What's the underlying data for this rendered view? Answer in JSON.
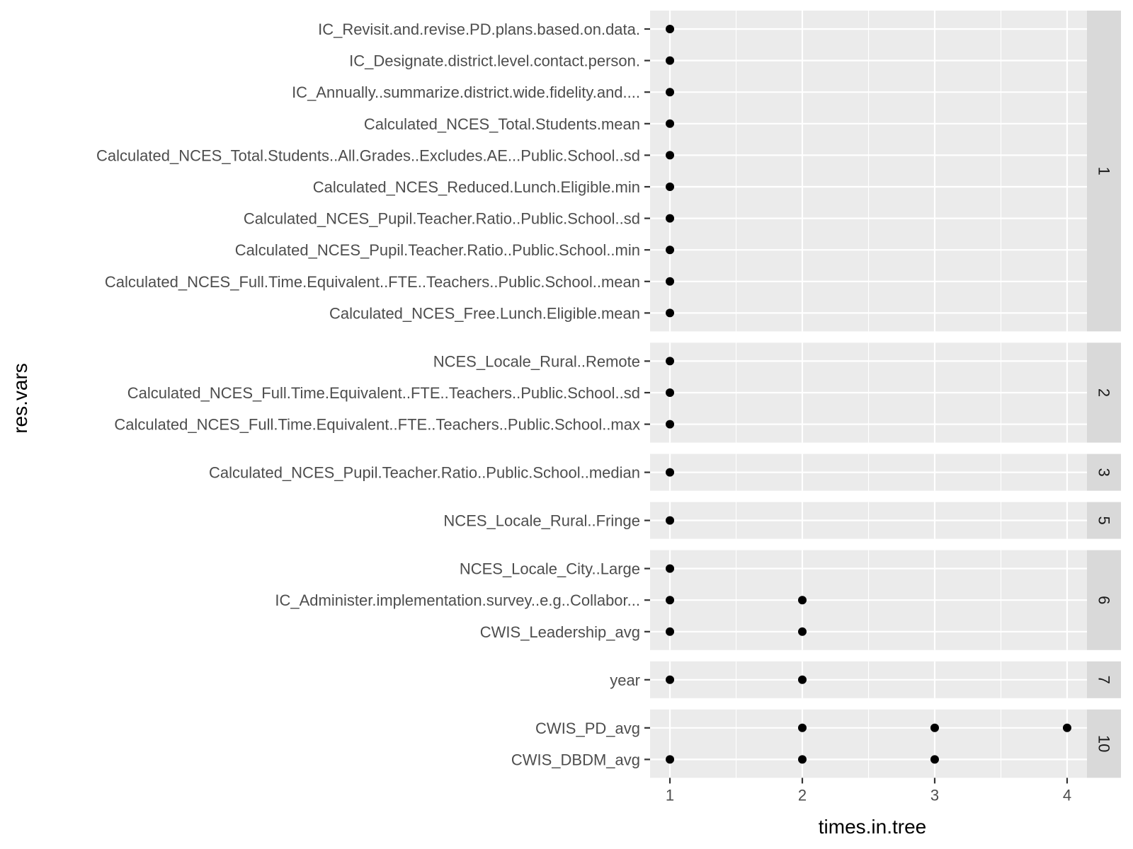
{
  "chart_data": {
    "type": "scatter",
    "xlabel": "times.in.tree",
    "ylabel": "res.vars",
    "xlim": [
      0.85,
      4.15
    ],
    "x_ticks": [
      1,
      2,
      3,
      4
    ],
    "grid": true,
    "facet_by": "times.in.tree (max)",
    "panels": [
      {
        "strip": "1",
        "rows": [
          {
            "label": "IC_Revisit.and.revise.PD.plans.based.on.data.",
            "x": [
              1
            ]
          },
          {
            "label": "IC_Designate.district.level.contact.person.",
            "x": [
              1
            ]
          },
          {
            "label": "IC_Annually..summarize.district.wide.fidelity.and....",
            "x": [
              1
            ]
          },
          {
            "label": "Calculated_NCES_Total.Students.mean",
            "x": [
              1
            ]
          },
          {
            "label": "Calculated_NCES_Total.Students..All.Grades..Excludes.AE...Public.School..sd",
            "x": [
              1
            ]
          },
          {
            "label": "Calculated_NCES_Reduced.Lunch.Eligible.min",
            "x": [
              1
            ]
          },
          {
            "label": "Calculated_NCES_Pupil.Teacher.Ratio..Public.School..sd",
            "x": [
              1
            ]
          },
          {
            "label": "Calculated_NCES_Pupil.Teacher.Ratio..Public.School..min",
            "x": [
              1
            ]
          },
          {
            "label": "Calculated_NCES_Full.Time.Equivalent..FTE..Teachers..Public.School..mean",
            "x": [
              1
            ]
          },
          {
            "label": "Calculated_NCES_Free.Lunch.Eligible.mean",
            "x": [
              1
            ]
          }
        ]
      },
      {
        "strip": "2",
        "rows": [
          {
            "label": "NCES_Locale_Rural..Remote",
            "x": [
              1
            ]
          },
          {
            "label": "Calculated_NCES_Full.Time.Equivalent..FTE..Teachers..Public.School..sd",
            "x": [
              1
            ]
          },
          {
            "label": "Calculated_NCES_Full.Time.Equivalent..FTE..Teachers..Public.School..max",
            "x": [
              1
            ]
          }
        ]
      },
      {
        "strip": "3",
        "rows": [
          {
            "label": "Calculated_NCES_Pupil.Teacher.Ratio..Public.School..median",
            "x": [
              1
            ]
          }
        ]
      },
      {
        "strip": "5",
        "rows": [
          {
            "label": "NCES_Locale_Rural..Fringe",
            "x": [
              1
            ]
          }
        ]
      },
      {
        "strip": "6",
        "rows": [
          {
            "label": "NCES_Locale_City..Large",
            "x": [
              1
            ]
          },
          {
            "label": "IC_Administer.implementation.survey..e.g..Collabor...",
            "x": [
              1,
              2
            ]
          },
          {
            "label": "CWIS_Leadership_avg",
            "x": [
              1,
              2
            ]
          }
        ]
      },
      {
        "strip": "7",
        "rows": [
          {
            "label": "year",
            "x": [
              1,
              2
            ]
          }
        ]
      },
      {
        "strip": "10",
        "rows": [
          {
            "label": "CWIS_PD_avg",
            "x": [
              2,
              3,
              4
            ]
          },
          {
            "label": "CWIS_DBDM_avg",
            "x": [
              1,
              2,
              3
            ]
          }
        ]
      }
    ],
    "colors": {
      "panel_bg": "#EBEBEB",
      "grid": "#FFFFFF",
      "strip_bg": "#D9D9D9",
      "point": "#000000",
      "tick_text": "#4D4D4D"
    }
  }
}
